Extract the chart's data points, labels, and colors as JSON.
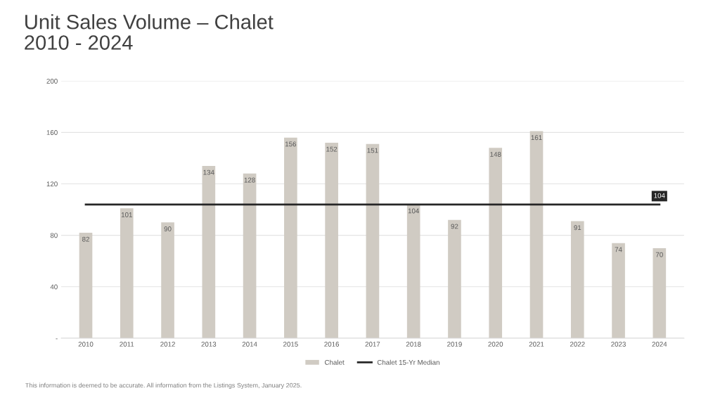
{
  "chart_data": {
    "type": "bar",
    "title": "Unit Sales Volume – Chalet\n2010 - 2024",
    "categories": [
      "2010",
      "2011",
      "2012",
      "2013",
      "2014",
      "2015",
      "2016",
      "2017",
      "2018",
      "2019",
      "2020",
      "2021",
      "2022",
      "2023",
      "2024"
    ],
    "series": [
      {
        "name": "Chalet",
        "color": "#d0cbc3",
        "values": [
          82,
          101,
          90,
          134,
          128,
          156,
          152,
          151,
          104,
          92,
          148,
          161,
          91,
          74,
          70
        ],
        "value_labels": [
          "82",
          "101",
          "90",
          "134",
          "128",
          "156",
          "152",
          "151",
          "104",
          "92",
          "148",
          "161",
          "91",
          "74",
          "70"
        ]
      },
      {
        "name": "Chalet 15-Yr Median",
        "type": "line",
        "color": "#262626",
        "values": [
          104,
          104,
          104,
          104,
          104,
          104,
          104,
          104,
          104,
          104,
          104,
          104,
          104,
          104,
          104
        ],
        "value_labels": [
          null,
          null,
          null,
          null,
          null,
          null,
          null,
          null,
          null,
          null,
          null,
          null,
          null,
          null,
          "104"
        ]
      }
    ],
    "ylim": [
      0,
      200
    ],
    "yticks": [
      {
        "value": 0,
        "label": "-"
      },
      40,
      80,
      120,
      160,
      200
    ],
    "grid": "y",
    "legend": "bottom",
    "annotations": [
      "This information is deemed to be accurate. All information from the Listings System, January 2025."
    ]
  }
}
